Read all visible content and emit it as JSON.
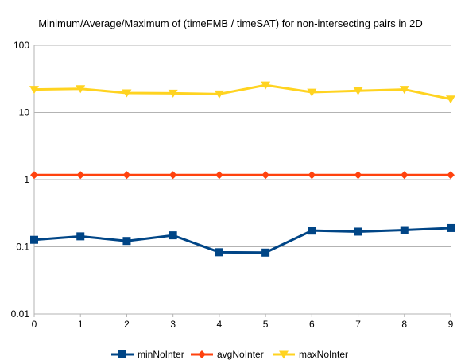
{
  "chart_data": {
    "type": "line",
    "title": "Minimum/Average/Maximum of (timeFMB / timeSAT) for non-intersecting pairs in 2D",
    "xlabel": "",
    "ylabel": "",
    "x": [
      0,
      1,
      2,
      3,
      4,
      5,
      6,
      7,
      8,
      9
    ],
    "x_ticks": [
      "0",
      "1",
      "2",
      "3",
      "4",
      "5",
      "6",
      "7",
      "8",
      "9"
    ],
    "y_scale": "log",
    "ylim": [
      0.01,
      100
    ],
    "y_ticks": [
      "0.01",
      "0.1",
      "1",
      "10",
      "100"
    ],
    "grid": "horizontal",
    "legend_position": "bottom",
    "series": [
      {
        "name": "minNoInter",
        "color": "#004586",
        "marker": "square",
        "values": [
          0.127,
          0.143,
          0.122,
          0.148,
          0.083,
          0.082,
          0.174,
          0.168,
          0.177,
          0.19
        ]
      },
      {
        "name": "avgNoInter",
        "color": "#ff420e",
        "marker": "diamond",
        "values": [
          1.17,
          1.17,
          1.17,
          1.17,
          1.17,
          1.17,
          1.17,
          1.17,
          1.17,
          1.17
        ]
      },
      {
        "name": "maxNoInter",
        "color": "#ffd320",
        "marker": "triangle-down",
        "values": [
          22,
          22.5,
          19.5,
          19.3,
          18.8,
          25.5,
          20,
          21,
          22,
          15.8
        ]
      }
    ]
  }
}
